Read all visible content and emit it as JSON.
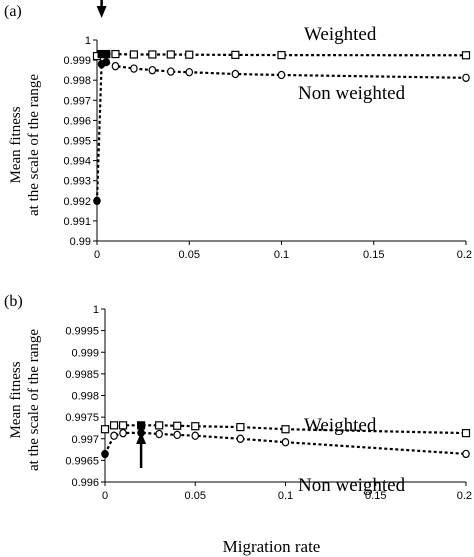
{
  "chart_data": [
    {
      "type": "line",
      "panel_label": "(a)",
      "ylabel_lines": [
        "Mean fitness",
        "at the scale of the range"
      ],
      "xlabel": "",
      "x": [
        0,
        0.0025,
        0.005,
        0.01,
        0.02,
        0.03,
        0.04,
        0.05,
        0.075,
        0.1,
        0.2
      ],
      "xlim": [
        0,
        0.2
      ],
      "ylim": [
        0.99,
        1
      ],
      "xticks": [
        "0",
        "0.05",
        "0.1",
        "0.15",
        "0.2"
      ],
      "yticks": [
        "0.99",
        "0.991",
        "0.992",
        "0.993",
        "0.994",
        "0.995",
        "0.996",
        "0.997",
        "0.998",
        "0.999",
        "1"
      ],
      "series": [
        {
          "name": "Weighted",
          "marker": "square",
          "values": [
            0.9992,
            0.9993,
            0.9993,
            0.9993,
            0.99928,
            0.99928,
            0.99928,
            0.99927,
            0.99926,
            0.99925,
            0.99924
          ]
        },
        {
          "name": "Non weighted",
          "marker": "circle",
          "values": [
            0.992,
            0.9988,
            0.9989,
            0.9987,
            0.99858,
            0.9985,
            0.99843,
            0.9984,
            0.99831,
            0.99826,
            0.99812
          ]
        }
      ],
      "series_label_text": [
        "Weighted",
        "Non weighted"
      ],
      "annotation": "arrow",
      "arrow_x": 0.0025
    },
    {
      "type": "line",
      "panel_label": "(b)",
      "ylabel_lines": [
        "Mean fitness",
        "at the scale of the range"
      ],
      "xlabel": "Migration rate",
      "x": [
        0,
        0.005,
        0.01,
        0.02,
        0.03,
        0.04,
        0.05,
        0.075,
        0.1,
        0.2
      ],
      "xlim": [
        0,
        0.2
      ],
      "ylim": [
        0.996,
        1
      ],
      "xticks": [
        "0",
        "0.05",
        "0.1",
        "0.15",
        "0.2"
      ],
      "yticks": [
        "0.996",
        "0.9965",
        "0.997",
        "0.9975",
        "0.998",
        "0.9985",
        "0.999",
        "0.9995",
        "1"
      ],
      "series": [
        {
          "name": "Weighted",
          "marker": "square",
          "values": [
            0.99722,
            0.99731,
            0.99731,
            0.99731,
            0.99731,
            0.9973,
            0.99729,
            0.99727,
            0.99722,
            0.99713
          ]
        },
        {
          "name": "Non weighted",
          "marker": "circle",
          "values": [
            0.99665,
            0.99707,
            0.99713,
            0.99714,
            0.99711,
            0.99709,
            0.99707,
            0.997,
            0.99692,
            0.99665
          ]
        }
      ],
      "series_label_text": [
        "Weighted",
        "Non weighted"
      ],
      "annotation": "arrow",
      "arrow_x": 0.02
    }
  ]
}
